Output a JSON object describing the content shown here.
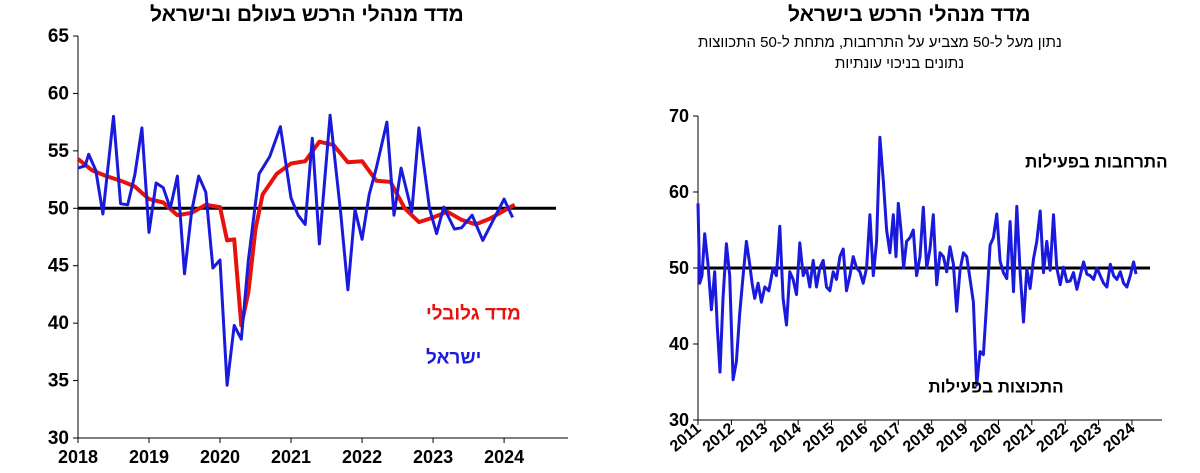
{
  "colors": {
    "global": "#e8120c",
    "israel": "#1a1adc",
    "axis": "#000000",
    "ref": "#000000"
  },
  "chart_data": [
    {
      "id": "left",
      "type": "line",
      "title": "מדד מנהלי הרכש בעולם ובישראל",
      "ylim": [
        30,
        65
      ],
      "yticks": [
        "30",
        "35",
        "40",
        "45",
        "50",
        "55",
        "60",
        "65"
      ],
      "xlim": [
        2018,
        2024.9
      ],
      "xticks": [
        "2018",
        "2019",
        "2020",
        "2021",
        "2022",
        "2023",
        "2024"
      ],
      "reference_line": 50,
      "annotations": [
        {
          "name": "global-label",
          "text": "מדד גלובלי",
          "x": 2022.9,
          "y": 40.3,
          "color": "global"
        },
        {
          "name": "israel-label",
          "text": "ישראל",
          "x": 2022.9,
          "y": 36.5,
          "color": "israel"
        }
      ],
      "series": [
        {
          "name": "מדד גלובלי",
          "color": "global",
          "x": [
            2018.0,
            2018.2,
            2018.4,
            2018.6,
            2018.8,
            2019.0,
            2019.2,
            2019.4,
            2019.6,
            2019.8,
            2020.0,
            2020.1,
            2020.2,
            2020.3,
            2020.4,
            2020.5,
            2020.6,
            2020.8,
            2021.0,
            2021.2,
            2021.4,
            2021.6,
            2021.8,
            2022.0,
            2022.2,
            2022.4,
            2022.6,
            2022.8,
            2023.0,
            2023.2,
            2023.4,
            2023.6,
            2023.8,
            2024.0,
            2024.15
          ],
          "y": [
            54.3,
            53.3,
            52.8,
            52.4,
            51.9,
            50.8,
            50.5,
            49.4,
            49.6,
            50.3,
            50.1,
            47.2,
            47.3,
            39.8,
            42.7,
            48.2,
            51.2,
            53.0,
            53.9,
            54.1,
            55.8,
            55.5,
            54.0,
            54.1,
            52.4,
            52.3,
            50.0,
            48.8,
            49.2,
            49.7,
            49.0,
            48.6,
            49.1,
            49.8,
            50.3
          ]
        },
        {
          "name": "ישראל",
          "color": "israel",
          "x": [
            2018.0,
            2018.1,
            2018.15,
            2018.25,
            2018.35,
            2018.5,
            2018.6,
            2018.7,
            2018.8,
            2018.9,
            2019.0,
            2019.1,
            2019.2,
            2019.3,
            2019.4,
            2019.5,
            2019.6,
            2019.7,
            2019.8,
            2019.9,
            2020.0,
            2020.1,
            2020.2,
            2020.3,
            2020.4,
            2020.55,
            2020.7,
            2020.85,
            2021.0,
            2021.1,
            2021.2,
            2021.3,
            2021.4,
            2021.55,
            2021.7,
            2021.8,
            2021.9,
            2022.0,
            2022.1,
            2022.2,
            2022.35,
            2022.45,
            2022.55,
            2022.7,
            2022.8,
            2022.95,
            2023.05,
            2023.15,
            2023.3,
            2023.4,
            2023.55,
            2023.7,
            2023.85,
            2024.0,
            2024.12
          ],
          "y": [
            53.5,
            53.7,
            54.7,
            53.3,
            49.5,
            58.0,
            50.4,
            50.3,
            52.9,
            57.0,
            47.9,
            52.2,
            51.8,
            50.0,
            52.8,
            44.3,
            49.7,
            52.8,
            51.4,
            44.8,
            45.5,
            34.6,
            39.8,
            38.6,
            45.5,
            53.0,
            54.5,
            57.1,
            50.9,
            49.4,
            48.6,
            56.1,
            46.9,
            58.1,
            49.5,
            42.9,
            49.9,
            47.3,
            51.2,
            53.5,
            57.5,
            49.4,
            53.5,
            49.7,
            57.0,
            50.0,
            47.8,
            50.1,
            48.2,
            48.3,
            49.4,
            47.2,
            49.0,
            50.8,
            49.2
          ]
        }
      ]
    },
    {
      "id": "right",
      "type": "line",
      "title": "מדד מנהלי הרכש בישראל",
      "subtitle_lines": [
        "נתון מעל ל-50 מצביע על התרחבות, מתחת ל-50 התכווצות",
        "נתונים בניכוי עונתיות"
      ],
      "ylim": [
        30,
        70
      ],
      "yticks": [
        "30",
        "40",
        "50",
        "60",
        "70"
      ],
      "xlim": [
        2011,
        2024.9
      ],
      "xticks": [
        "2011",
        "2012",
        "2013",
        "2014",
        "2015",
        "2016",
        "2017",
        "2018",
        "2019",
        "2020",
        "2021",
        "2022",
        "2023",
        "2024"
      ],
      "reference_line": 50,
      "annotations": [
        {
          "name": "expansion-label",
          "text": "התרחבות בפעילות",
          "x": 2020.8,
          "y": 63.2,
          "color": "axis"
        },
        {
          "name": "contraction-label",
          "text": "התכוצות בפעילות",
          "x": 2017.9,
          "y": 33.6,
          "color": "axis"
        }
      ],
      "series": [
        {
          "name": "israel-pmi",
          "color": "israel",
          "x": [
            2011.0,
            2011.05,
            2011.12,
            2011.2,
            2011.3,
            2011.4,
            2011.5,
            2011.58,
            2011.66,
            2011.75,
            2011.85,
            2011.95,
            2012.05,
            2012.15,
            2012.25,
            2012.35,
            2012.45,
            2012.55,
            2012.62,
            2012.7,
            2012.8,
            2012.9,
            2013.0,
            2013.12,
            2013.25,
            2013.35,
            2013.45,
            2013.55,
            2013.65,
            2013.75,
            2013.85,
            2013.95,
            2014.05,
            2014.15,
            2014.25,
            2014.35,
            2014.45,
            2014.55,
            2014.65,
            2014.75,
            2014.85,
            2014.95,
            2015.05,
            2015.15,
            2015.25,
            2015.35,
            2015.45,
            2015.55,
            2015.65,
            2015.75,
            2015.85,
            2015.95,
            2016.05,
            2016.15,
            2016.25,
            2016.35,
            2016.45,
            2016.55,
            2016.65,
            2016.75,
            2016.85,
            2016.93,
            2017.0,
            2017.08,
            2017.16,
            2017.25,
            2017.35,
            2017.45,
            2017.55,
            2017.65,
            2017.75,
            2017.85,
            2017.95,
            2018.05,
            2018.15,
            2018.25,
            2018.35,
            2018.45,
            2018.55,
            2018.65,
            2018.75,
            2018.85,
            2018.95,
            2019.05,
            2019.15,
            2019.25,
            2019.35,
            2019.45,
            2019.55,
            2019.65,
            2019.75,
            2019.85,
            2019.95,
            2020.05,
            2020.15,
            2020.25,
            2020.35,
            2020.45,
            2020.55,
            2020.65,
            2020.75,
            2020.85,
            2020.95,
            2021.05,
            2021.15,
            2021.25,
            2021.35,
            2021.45,
            2021.55,
            2021.65,
            2021.75,
            2021.85,
            2021.95,
            2022.05,
            2022.15,
            2022.25,
            2022.35,
            2022.45,
            2022.55,
            2022.65,
            2022.75,
            2022.85,
            2022.95,
            2023.05,
            2023.15,
            2023.25,
            2023.35,
            2023.45,
            2023.55,
            2023.65,
            2023.75,
            2023.85,
            2023.95,
            2024.05,
            2024.12
          ],
          "y": [
            58.5,
            48.0,
            49.0,
            54.5,
            50.5,
            44.5,
            49.5,
            42.0,
            36.3,
            46.0,
            53.2,
            49.0,
            35.3,
            37.7,
            44.0,
            49.0,
            53.5,
            50.5,
            48.0,
            46.0,
            48.0,
            45.5,
            47.5,
            47.0,
            50.0,
            49.0,
            55.5,
            46.0,
            42.5,
            49.5,
            48.5,
            46.5,
            53.3,
            49.0,
            50.0,
            47.5,
            51.0,
            47.5,
            50.0,
            51.0,
            47.5,
            47.0,
            49.5,
            48.5,
            51.5,
            52.5,
            47.0,
            49.0,
            51.5,
            50.0,
            49.5,
            48.0,
            50.0,
            57.0,
            49.0,
            53.5,
            67.2,
            61.5,
            55.0,
            52.0,
            57.0,
            51.5,
            58.5,
            55.0,
            50.0,
            53.5,
            54.0,
            55.0,
            49.0,
            51.5,
            58.0,
            50.0,
            52.5,
            57.0,
            47.8,
            52.0,
            51.5,
            49.5,
            52.8,
            50.5,
            44.3,
            49.7,
            52.0,
            51.5,
            48.5,
            45.5,
            34.6,
            39.0,
            38.6,
            45.5,
            53.0,
            54.0,
            57.1,
            50.9,
            49.4,
            48.6,
            56.1,
            46.9,
            58.1,
            49.5,
            42.9,
            49.9,
            47.3,
            51.2,
            53.5,
            57.5,
            49.4,
            53.5,
            49.7,
            57.0,
            50.0,
            47.8,
            50.1,
            48.2,
            48.3,
            49.4,
            47.2,
            49.0,
            50.8,
            49.2,
            49.0,
            48.5,
            50.0,
            49.0,
            48.0,
            47.5,
            50.5,
            49.0,
            48.5,
            49.5,
            48.0,
            47.5,
            49.0,
            50.8,
            49.2
          ]
        }
      ]
    }
  ]
}
